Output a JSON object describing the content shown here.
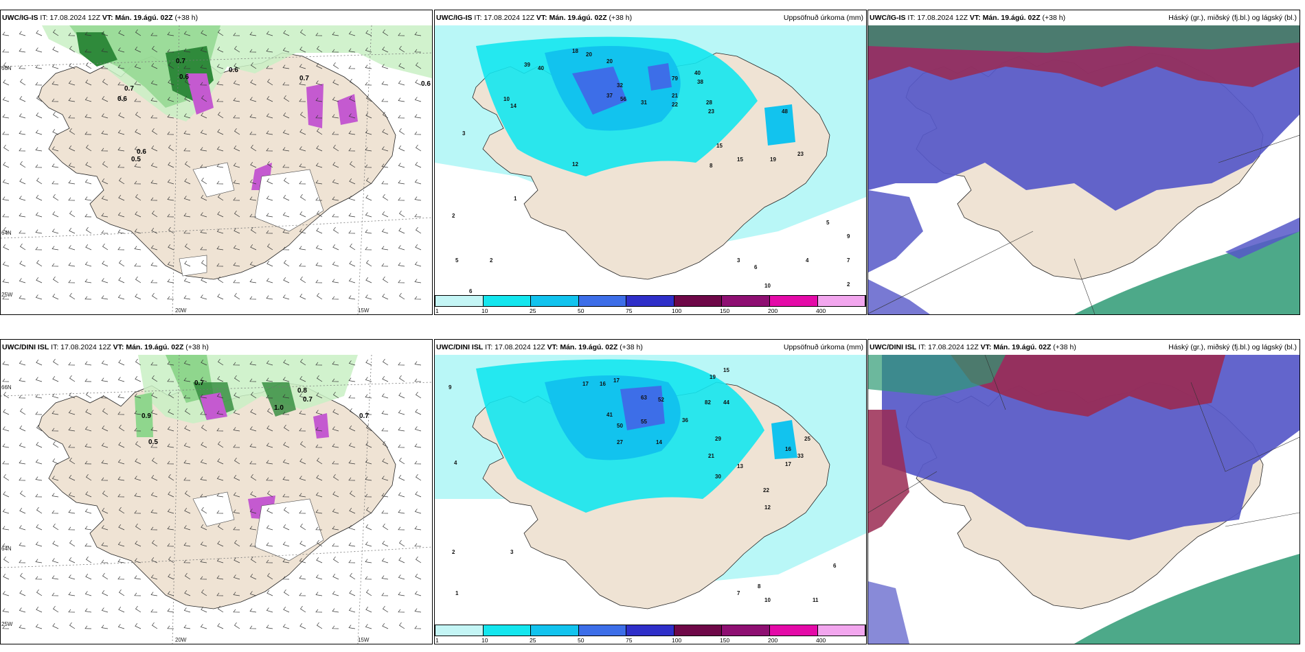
{
  "header": {
    "it": "IT: 17.08.2024 12Z",
    "vt": "VT: Mán. 19.ágú. 02Z",
    "lead": "(+38 h)"
  },
  "rows": [
    {
      "model": "UWC/IG-IS",
      "panels": [
        {
          "id": "wind",
          "right_title": ""
        },
        {
          "id": "precip",
          "right_title": "Uppsöfnuð úrkoma (mm)"
        },
        {
          "id": "cloud",
          "right_title": "Háský (gr.), miðský (fj.bl.) og lágský (bl.)"
        }
      ]
    },
    {
      "model": "UWC/DINI ISL",
      "panels": [
        {
          "id": "wind",
          "right_title": ""
        },
        {
          "id": "precip",
          "right_title": "Uppsöfnuð úrkoma (mm)"
        },
        {
          "id": "cloud",
          "right_title": "Háský (gr.), miðský (fj.bl.) og lágský (bl.)"
        }
      ]
    }
  ],
  "axes": {
    "lon_labels": [
      "20W",
      "15W"
    ],
    "lat_labels": [
      "66N",
      "64N"
    ],
    "corner_label": "25W"
  },
  "legend": {
    "ticks": [
      "1",
      "10",
      "25",
      "50",
      "75",
      "100",
      "150",
      "200",
      "400"
    ],
    "colors": [
      "#c4f5f5",
      "#14e6ee",
      "#12c3ee",
      "#3d6ee8",
      "#2f2fc9",
      "#6e0848",
      "#8e0f72",
      "#e40aa8",
      "#f2a6ee"
    ]
  },
  "precip_labels": {
    "row1": [
      "18",
      "20",
      "20",
      "39",
      "40",
      "37",
      "32",
      "56",
      "31",
      "79",
      "40",
      "38",
      "21",
      "22",
      "28",
      "23",
      "48",
      "15",
      "15",
      "19",
      "23",
      "12",
      "14",
      "10",
      "8",
      "2",
      "5",
      "2",
      "3",
      "4",
      "2",
      "1",
      "5",
      "6",
      "3",
      "6",
      "7",
      "9",
      "10"
    ],
    "row2": [
      "9",
      "15",
      "19",
      "16",
      "17",
      "17",
      "63",
      "52",
      "82",
      "44",
      "36",
      "41",
      "50",
      "55",
      "27",
      "14",
      "13",
      "21",
      "29",
      "30",
      "22",
      "25",
      "33",
      "17",
      "16",
      "12",
      "6",
      "4",
      "2",
      "1",
      "3",
      "8",
      "10",
      "11",
      "7"
    ]
  },
  "wind_labels": {
    "row1": [
      "0.7",
      "0.6",
      "0.7",
      "0.7",
      "0.6",
      "0.5",
      "0.6",
      "0.6",
      "0.6"
    ],
    "row2": [
      "0.7",
      "0.8",
      "0.7",
      "0.9",
      "0.5",
      "0.7",
      "1.0"
    ]
  },
  "colors": {
    "land": "#efe3d4",
    "sea": "#ffffff",
    "precip_sea": "#b9f7f7",
    "green_light": "#c9f0c4",
    "green_mid": "#8fd68d",
    "green_dark": "#2f8a3b",
    "magenta": "#c45ad0",
    "high_cloud": "#9a2a52",
    "mid_cloud": "#5658c8",
    "low_cloud": "#2e9a74"
  }
}
